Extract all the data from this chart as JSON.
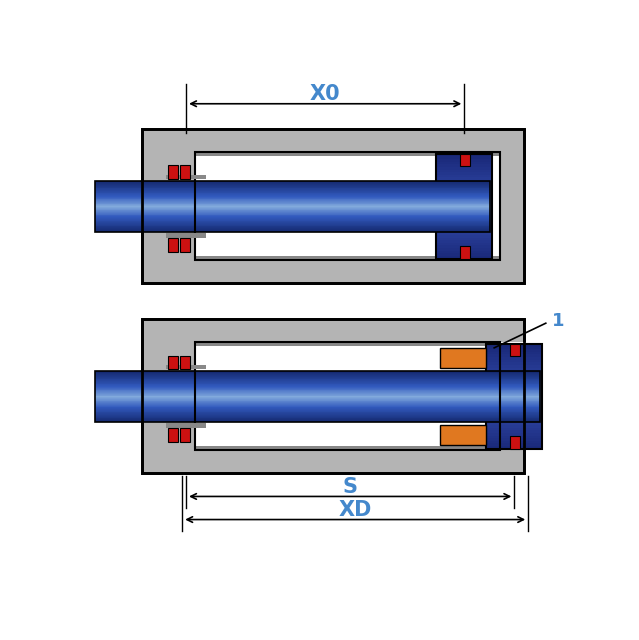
{
  "fig_width": 6.39,
  "fig_height": 6.4,
  "bg_color": "#ffffff",
  "gray_body": "#b4b4b4",
  "gray_dark": "#888888",
  "blue_label": "#4488cc",
  "red_block": "#cc1111",
  "orange_block": "#e07820",
  "black": "#000000",
  "white": "#ffffff",
  "label_X0": "X0",
  "label_S": "S",
  "label_XD": "XD",
  "label_1": "1"
}
